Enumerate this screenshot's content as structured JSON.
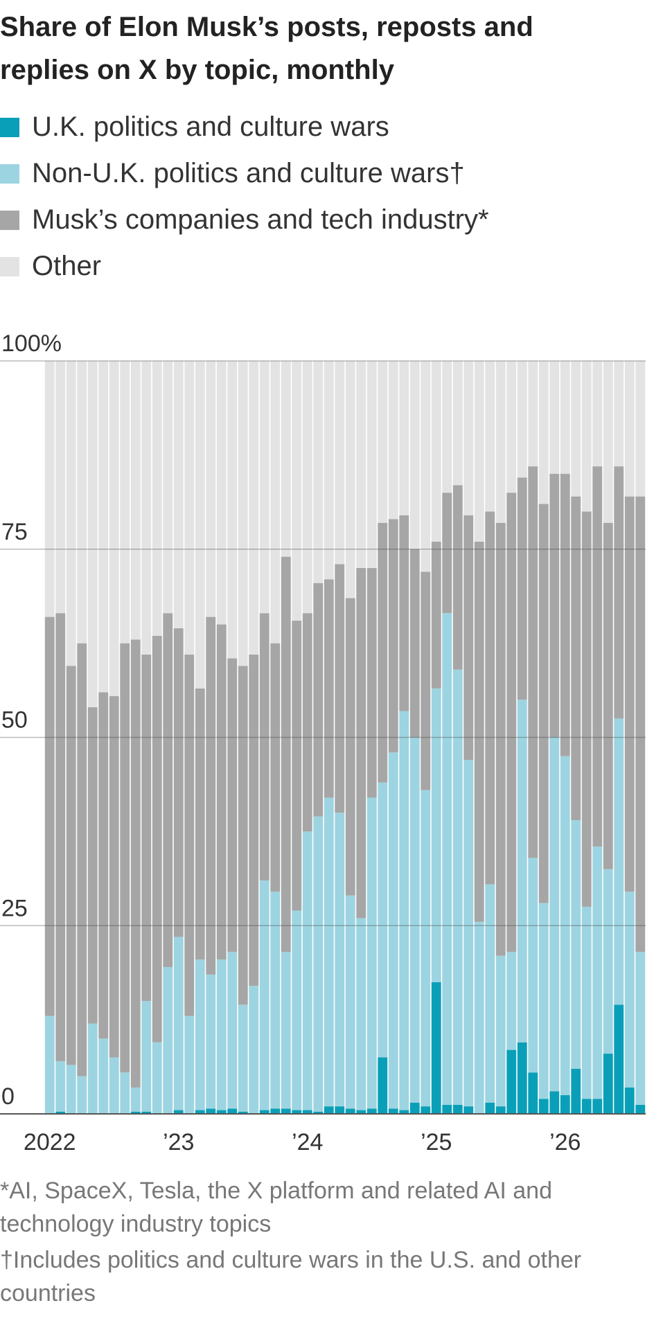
{
  "chart_data": {
    "type": "bar",
    "stacked": true,
    "title": "Share of Elon Musk’s posts, reposts and replies on X by topic, monthly",
    "categories": [
      "2022",
      null,
      null,
      null,
      null,
      null,
      null,
      null,
      null,
      null,
      null,
      null,
      "’23",
      null,
      null,
      null,
      null,
      null,
      null,
      null,
      null,
      null,
      null,
      null,
      "’24",
      null,
      null,
      null,
      null,
      null,
      null,
      null,
      null,
      null,
      null,
      null,
      "’25",
      null,
      null,
      null,
      null,
      null,
      null,
      null,
      null,
      null,
      null,
      null,
      "’26",
      null,
      null,
      null,
      null,
      null,
      null,
      null
    ],
    "series": [
      {
        "name": "U.K. politics and culture wars",
        "color": "#0a9fb8",
        "values": [
          0,
          0.3,
          0,
          0,
          0,
          0,
          0,
          0,
          0.3,
          0.3,
          0,
          0,
          0.5,
          0,
          0.5,
          0.7,
          0.5,
          0.7,
          0.3,
          0,
          0.5,
          0.7,
          0.7,
          0.5,
          0.5,
          0.3,
          1,
          1,
          0.7,
          0.5,
          0.7,
          7.5,
          0.7,
          0.5,
          1.5,
          1,
          17.5,
          1.2,
          1.2,
          1,
          0,
          1.5,
          1,
          8.5,
          9.5,
          5.5,
          2,
          3,
          2.5,
          6,
          2,
          2,
          8,
          14.5,
          3.5,
          1.2
        ]
      },
      {
        "name": "Non-U.K. politics and culture wars†",
        "color": "#9dd4e1",
        "values": [
          13,
          6.7,
          6.5,
          5,
          12,
          10,
          7.5,
          5.5,
          3.2,
          14.7,
          9.5,
          19.5,
          23,
          13,
          20,
          17.8,
          20,
          20.8,
          14.2,
          17,
          30.5,
          28.8,
          20.8,
          26.5,
          37,
          39.2,
          41,
          39,
          28.3,
          25.5,
          41.3,
          36.5,
          47.3,
          53,
          48.5,
          42,
          39,
          65.3,
          57.8,
          46,
          25.5,
          29,
          20,
          13,
          45.5,
          28.5,
          26,
          47,
          45,
          33,
          25.5,
          33.5,
          24.5,
          38,
          26,
          20.3
        ]
      },
      {
        "name": "Musk’s companies and tech industry*",
        "color": "#a6a6a6",
        "values": [
          53,
          59.5,
          53,
          57.5,
          42,
          46,
          48,
          57,
          59.5,
          46,
          54,
          47,
          41,
          48,
          36,
          47.5,
          44.5,
          39,
          45,
          44,
          35.5,
          33,
          52.5,
          38.5,
          29,
          31,
          29,
          33,
          39.5,
          46.5,
          30.5,
          34.5,
          31,
          26,
          25,
          29,
          19.5,
          16,
          24.5,
          32.5,
          50.5,
          49.5,
          57.5,
          61,
          29.5,
          52,
          53,
          35,
          37.5,
          43,
          52.5,
          50.5,
          46,
          33.5,
          52.5,
          60.5
        ]
      },
      {
        "name": "Other",
        "color": "#e3e3e3",
        "values": [
          34,
          33.5,
          40.5,
          37.5,
          46,
          44,
          44.5,
          37.5,
          37,
          39,
          36.5,
          33.5,
          35.5,
          39,
          43.5,
          34,
          35,
          39.5,
          40.5,
          39,
          33.5,
          37.5,
          26,
          34.5,
          33.5,
          29.5,
          29,
          27,
          31.5,
          27.5,
          27.5,
          21.5,
          21,
          20.5,
          25,
          28,
          24,
          17.5,
          16.5,
          20.5,
          24,
          20,
          21.5,
          17.5,
          15.5,
          14,
          19,
          15,
          15,
          18,
          20,
          14,
          21.5,
          14,
          18,
          18
        ]
      }
    ],
    "ylim": [
      0,
      100
    ],
    "yticks": [
      0,
      25,
      50,
      75,
      {
        "value": 100,
        "label": "100%"
      }
    ],
    "grid": true,
    "notes": [
      "*AI, SpaceX, Tesla, the X platform and related AI and technology industry topics",
      "†Includes politics and culture wars in the U.S. and other countries"
    ]
  }
}
